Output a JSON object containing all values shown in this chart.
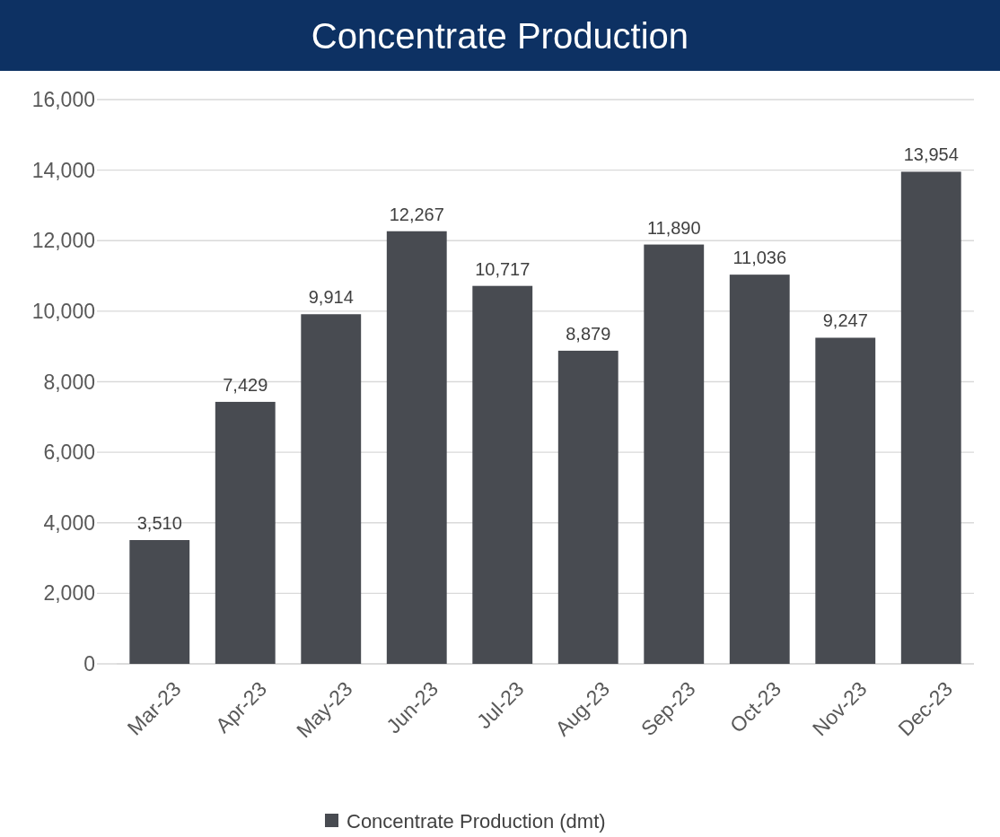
{
  "chart_data": {
    "type": "bar",
    "title": "Concentrate Production",
    "categories": [
      "Mar-23",
      "Apr-23",
      "May-23",
      "Jun-23",
      "Jul-23",
      "Aug-23",
      "Sep-23",
      "Oct-23",
      "Nov-23",
      "Dec-23"
    ],
    "series": [
      {
        "name": "Concentrate Production (dmt)",
        "color": "#484b51",
        "values": [
          3510,
          7429,
          9914,
          12267,
          10717,
          8879,
          11890,
          11036,
          9247,
          13954
        ],
        "value_labels": [
          "3,510",
          "7,429",
          "9,914",
          "12,267",
          "10,717",
          "8,879",
          "11,890",
          "11,036",
          "9,247",
          "13,954"
        ]
      }
    ],
    "ylim": [
      0,
      16000
    ],
    "yticks": [
      {
        "value": 0,
        "label": "0"
      },
      {
        "value": 2000,
        "label": "2,000"
      },
      {
        "value": 4000,
        "label": "4,000"
      },
      {
        "value": 6000,
        "label": "6,000"
      },
      {
        "value": 8000,
        "label": "8,000"
      },
      {
        "value": 10000,
        "label": "10,000"
      },
      {
        "value": 12000,
        "label": "12,000"
      },
      {
        "value": 14000,
        "label": "14,000"
      },
      {
        "value": 16000,
        "label": "16,000"
      }
    ],
    "grid": "y",
    "legend": "bottom"
  }
}
